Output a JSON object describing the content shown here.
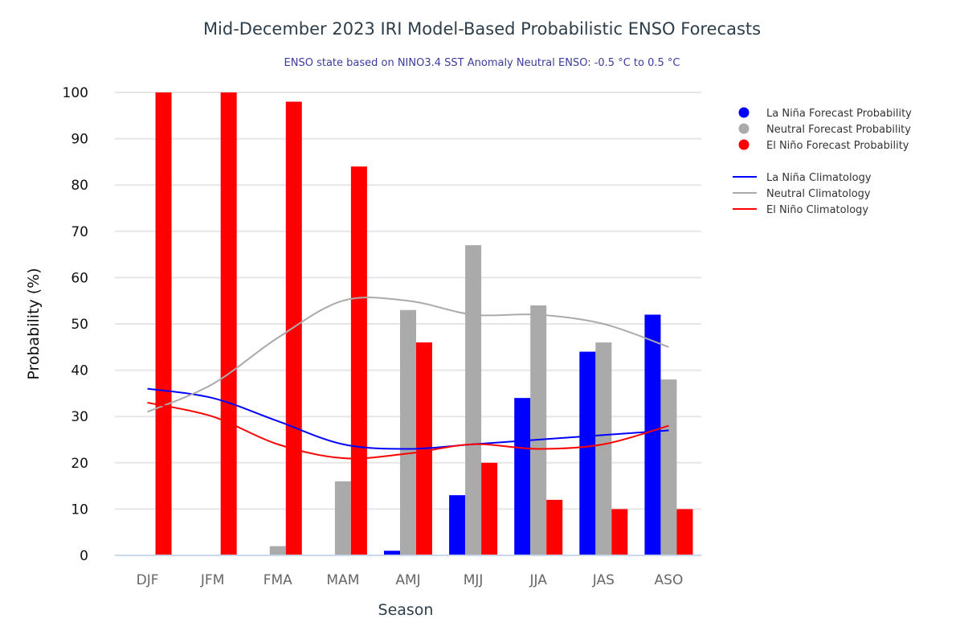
{
  "chart_data": {
    "type": "bar",
    "title": "Mid-December 2023 IRI Model-Based Probabilistic ENSO Forecasts",
    "subtitle": "ENSO state based on NINO3.4 SST Anomaly Neutral ENSO: -0.5 °C to 0.5 °C",
    "xlabel": "Season",
    "ylabel": "Probability (%)",
    "ylim": [
      0,
      100
    ],
    "yticks": [
      0,
      10,
      20,
      30,
      40,
      50,
      60,
      70,
      80,
      90,
      100
    ],
    "grid": true,
    "legend_position": "right",
    "categories": [
      "DJF",
      "JFM",
      "FMA",
      "MAM",
      "AMJ",
      "MJJ",
      "JJA",
      "JAS",
      "ASO"
    ],
    "series": [
      {
        "name": "La Niña Forecast Probability",
        "kind": "bar",
        "color": "#0000ff",
        "values": [
          0,
          0,
          0,
          0,
          1,
          13,
          34,
          44,
          52
        ]
      },
      {
        "name": "Neutral Forecast Probability",
        "kind": "bar",
        "color": "#aaaaaa",
        "values": [
          0,
          0,
          2,
          16,
          53,
          67,
          54,
          46,
          38
        ]
      },
      {
        "name": "El Niño Forecast Probability",
        "kind": "bar",
        "color": "#ff0000",
        "values": [
          100,
          100,
          98,
          84,
          46,
          20,
          12,
          10,
          10
        ]
      },
      {
        "name": "La Niña Climatology",
        "kind": "line",
        "color": "#0000ff",
        "values": [
          36,
          34,
          29,
          24,
          23,
          24,
          25,
          26,
          27
        ]
      },
      {
        "name": "Neutral Climatology",
        "kind": "line",
        "color": "#aaaaaa",
        "values": [
          31,
          37,
          47,
          55,
          55,
          52,
          52,
          50,
          45
        ]
      },
      {
        "name": "El Niño Climatology",
        "kind": "line",
        "color": "#ff0000",
        "values": [
          33,
          30,
          24,
          21,
          22,
          24,
          23,
          24,
          28
        ]
      }
    ]
  }
}
